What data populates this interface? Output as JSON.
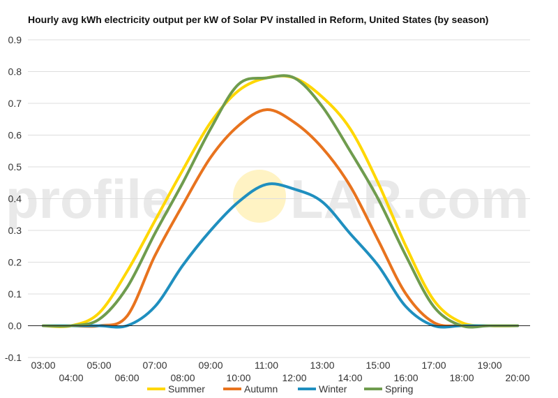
{
  "chart_data": {
    "type": "line",
    "title": "Hourly avg kWh electricity output per kW of Solar PV installed in Reform, United States (by season)",
    "x": [
      "03:00",
      "04:00",
      "05:00",
      "06:00",
      "07:00",
      "08:00",
      "09:00",
      "10:00",
      "11:00",
      "12:00",
      "13:00",
      "14:00",
      "15:00",
      "16:00",
      "17:00",
      "18:00",
      "19:00",
      "20:00"
    ],
    "x_tick_labels_upper": [
      "03:00",
      "05:00",
      "07:00",
      "09:00",
      "11:00",
      "13:00",
      "15:00",
      "17:00",
      "19:00"
    ],
    "x_tick_labels_lower": [
      "04:00",
      "06:00",
      "08:00",
      "10:00",
      "12:00",
      "14:00",
      "16:00",
      "18:00",
      "20:00"
    ],
    "y_ticks": [
      "0.9",
      "0.8",
      "0.7",
      "0.6",
      "0.5",
      "0.4",
      "0.3",
      "0.2",
      "0.1",
      "0.0",
      "-0.1"
    ],
    "ylim": [
      -0.1,
      0.9
    ],
    "grid": true,
    "legend_position": "bottom",
    "series": [
      {
        "name": "Summer",
        "color": "#ffd700",
        "values": [
          0.0,
          0.0,
          0.04,
          0.17,
          0.33,
          0.49,
          0.64,
          0.74,
          0.78,
          0.78,
          0.72,
          0.62,
          0.45,
          0.25,
          0.08,
          0.01,
          0.0,
          0.0
        ]
      },
      {
        "name": "Autumn",
        "color": "#e8731e",
        "values": [
          0.0,
          0.0,
          0.0,
          0.03,
          0.22,
          0.38,
          0.53,
          0.63,
          0.68,
          0.64,
          0.56,
          0.44,
          0.27,
          0.1,
          0.01,
          0.0,
          0.0,
          0.0
        ]
      },
      {
        "name": "Winter",
        "color": "#1f8fbf",
        "values": [
          0.0,
          0.0,
          0.0,
          0.0,
          0.06,
          0.19,
          0.3,
          0.39,
          0.445,
          0.43,
          0.39,
          0.29,
          0.19,
          0.06,
          0.0,
          0.0,
          0.0,
          0.0
        ]
      },
      {
        "name": "Spring",
        "color": "#6f9c4e",
        "values": [
          0.0,
          0.0,
          0.02,
          0.12,
          0.29,
          0.45,
          0.62,
          0.76,
          0.78,
          0.78,
          0.69,
          0.55,
          0.4,
          0.22,
          0.06,
          0.0,
          0.0,
          0.0
        ]
      }
    ]
  },
  "watermark": {
    "left": "profile",
    "right": "LAR.com"
  },
  "colors": {
    "zero_line": "#222222",
    "grid": "#dddddd",
    "watermark_sun": "#fff3c4"
  }
}
